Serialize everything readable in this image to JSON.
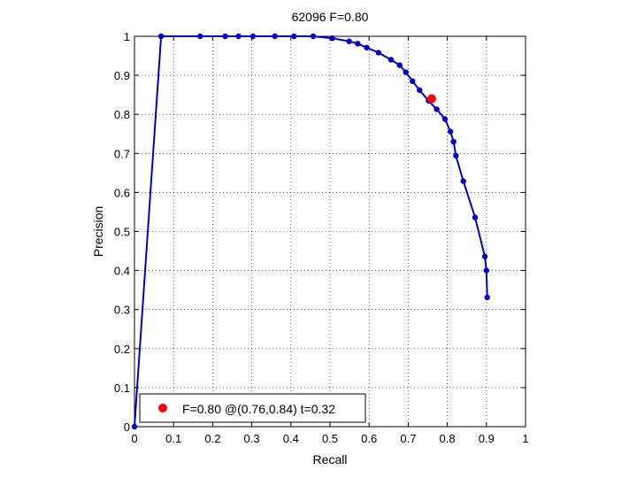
{
  "chart_data": {
    "type": "line",
    "title": "62096 F=0.80",
    "xlabel": "Recall",
    "ylabel": "Precision",
    "xlim": [
      0,
      1
    ],
    "ylim": [
      0,
      1
    ],
    "grid": true,
    "xticks": [
      "0",
      "0.1",
      "0.2",
      "0.3",
      "0.4",
      "0.5",
      "0.6",
      "0.7",
      "0.8",
      "0.9",
      "1"
    ],
    "yticks": [
      "0",
      "0.1",
      "0.2",
      "0.3",
      "0.4",
      "0.5",
      "0.6",
      "0.7",
      "0.8",
      "0.9",
      "1"
    ],
    "series": [
      {
        "color": "#0000cc",
        "x": [
          0.0,
          0.068,
          0.168,
          0.232,
          0.266,
          0.303,
          0.359,
          0.408,
          0.457,
          0.506,
          0.549,
          0.571,
          0.594,
          0.624,
          0.656,
          0.678,
          0.694,
          0.711,
          0.729,
          0.752,
          0.773,
          0.794,
          0.808,
          0.816,
          0.822,
          0.841,
          0.871,
          0.896,
          0.9,
          0.902
        ],
        "y": [
          0.0,
          1.0,
          1.0,
          1.0,
          1.0,
          1.0,
          1.0,
          1.0,
          1.0,
          0.995,
          0.987,
          0.981,
          0.971,
          0.958,
          0.94,
          0.926,
          0.908,
          0.885,
          0.862,
          0.835,
          0.813,
          0.788,
          0.756,
          0.73,
          0.694,
          0.629,
          0.536,
          0.436,
          0.4,
          0.331
        ]
      }
    ],
    "highlight": {
      "x": 0.76,
      "y": 0.84,
      "color": "#ff0000"
    },
    "legend": {
      "position": "bottom-left",
      "text": "F=0.80 @(0.76,0.84) t=0.32"
    }
  }
}
